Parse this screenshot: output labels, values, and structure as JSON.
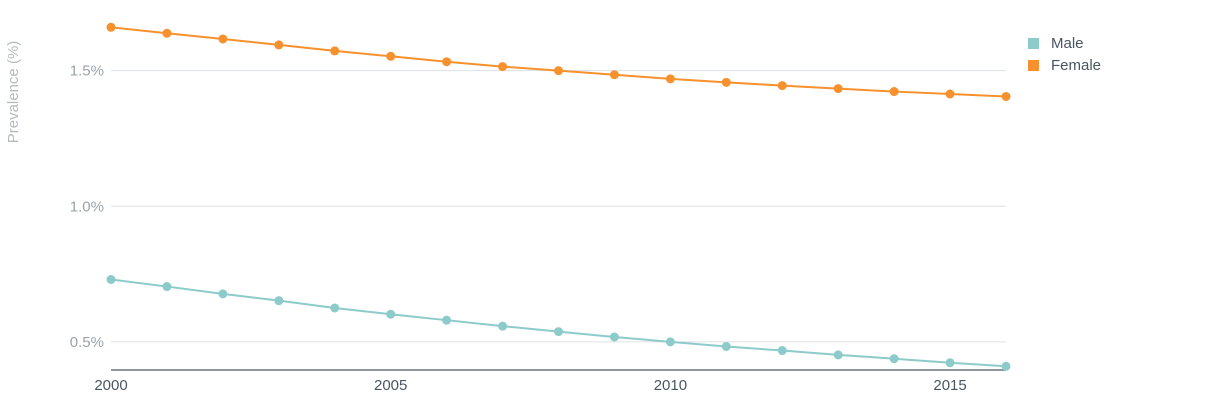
{
  "chart_data": {
    "type": "line",
    "ylabel": "Prevalence (%)",
    "xlabel": "",
    "x": [
      2000,
      2001,
      2002,
      2003,
      2004,
      2005,
      2006,
      2007,
      2008,
      2009,
      2010,
      2011,
      2012,
      2013,
      2014,
      2015,
      2016
    ],
    "series": [
      {
        "name": "Male",
        "color": "#8ccbca",
        "values": [
          0.73,
          0.704,
          0.677,
          0.652,
          0.625,
          0.602,
          0.58,
          0.558,
          0.538,
          0.518,
          0.5,
          0.483,
          0.468,
          0.452,
          0.438,
          0.423,
          0.41
        ]
      },
      {
        "name": "Female",
        "color": "#f7912d",
        "values": [
          1.66,
          1.638,
          1.617,
          1.595,
          1.573,
          1.553,
          1.533,
          1.515,
          1.5,
          1.485,
          1.47,
          1.457,
          1.445,
          1.434,
          1.423,
          1.414,
          1.405
        ]
      }
    ],
    "xlim": [
      2000,
      2016
    ],
    "ylim": [
      0.4,
      1.65
    ],
    "x_ticks": [
      2000,
      2005,
      2010,
      2015
    ],
    "x_tick_labels": [
      "2000",
      "2005",
      "2010",
      "2015"
    ],
    "y_ticks": [
      0.5,
      1.0,
      1.5
    ],
    "y_tick_labels": [
      "0.5%",
      "1.0%",
      "1.5%"
    ],
    "grid": true,
    "legend_position": "top-right"
  }
}
